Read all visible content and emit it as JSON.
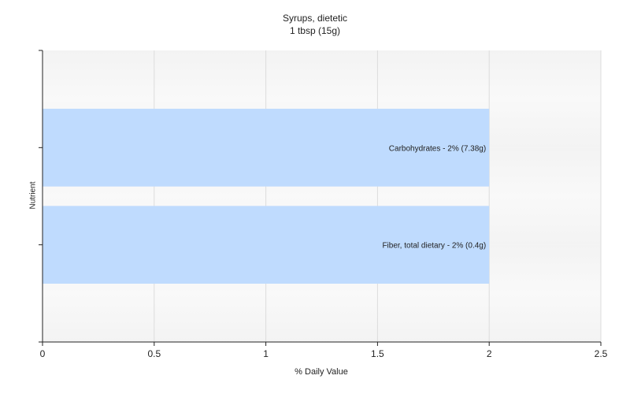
{
  "chart_data": {
    "type": "bar",
    "orientation": "horizontal",
    "title": "Syrups, dietetic",
    "subtitle": "1 tbsp (15g)",
    "xlabel": "% Daily Value",
    "ylabel": "Nutrient",
    "xlim": [
      0,
      2.5
    ],
    "xticks": [
      "0",
      "0.5",
      "1",
      "1.5",
      "2",
      "2.5"
    ],
    "categories": [
      "Carbohydrates",
      "Fiber, total dietary"
    ],
    "values": [
      2,
      2
    ],
    "data_labels": [
      "Carbohydrates - 2% (7.38g)",
      "Fiber, total dietary - 2% (0.4g)"
    ],
    "bar_color": "#bfdbfe",
    "grid": true
  }
}
